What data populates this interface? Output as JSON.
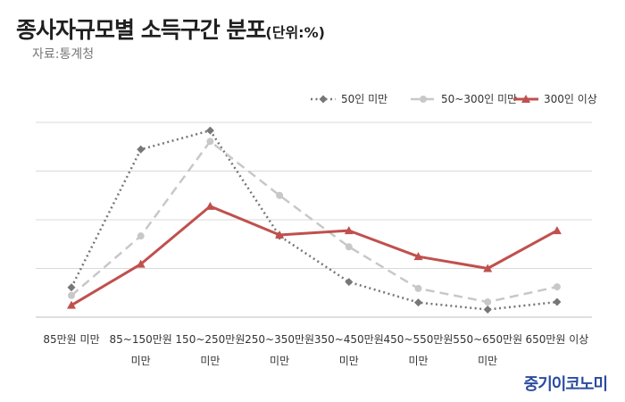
{
  "title": "종사자규모별 소득구간 분포",
  "title_unit": "(단위:%)",
  "source": "자료:통계청",
  "brand": "중기이코노미",
  "chart_data": {
    "type": "line",
    "categories": [
      [
        "85만원 미만"
      ],
      [
        "85~150만원",
        "미만"
      ],
      [
        "150~250만원",
        "미만"
      ],
      [
        "250~350만원",
        "미만"
      ],
      [
        "350~450만원",
        "미만"
      ],
      [
        "450~550만원",
        "미만"
      ],
      [
        "550~650만원",
        "미만"
      ],
      [
        "650만원 이상"
      ]
    ],
    "ylim": [
      0,
      36
    ],
    "grid": true,
    "legend_position": "top-right",
    "series": [
      {
        "name": "50인 미만",
        "color": "#777777",
        "style": "dotted",
        "marker": "diamond",
        "values": [
          5.5,
          31,
          34.5,
          15,
          6.5,
          2.7,
          1.4,
          2.8
        ]
      },
      {
        "name": "50~300인 미만",
        "color": "#c8c8c8",
        "style": "dashed",
        "marker": "circle",
        "values": [
          4,
          15,
          32.5,
          22.5,
          13,
          5.3,
          2.8,
          5.6
        ]
      },
      {
        "name": "300인 이상",
        "color": "#c0504d",
        "style": "solid",
        "marker": "triangle",
        "values": [
          2.2,
          9.8,
          20.5,
          15.2,
          16,
          11.2,
          9,
          16
        ]
      }
    ]
  }
}
